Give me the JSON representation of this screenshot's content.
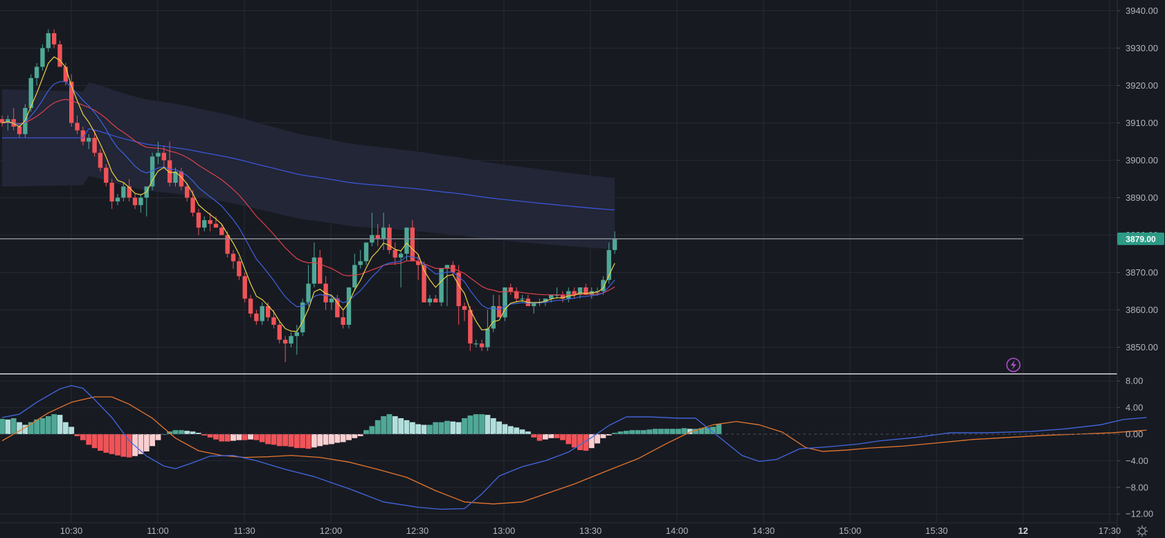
{
  "colors": {
    "background": "#181a22",
    "grid": "#262933",
    "axis_text": "#b2b5be",
    "up": "#4fa896",
    "down": "#ef5358",
    "ema_fast": "#ecd443",
    "ema_mid": "#3e63e0",
    "ema_slow": "#e0414d",
    "vwap": "#3b54d8",
    "band_fill": "#232838",
    "macd_line": "#4169e1",
    "signal_line": "#e5772f",
    "hist_up_strong": "#4fa896",
    "hist_up_weak": "#b2dfdb",
    "hist_down_strong": "#ef5358",
    "hist_down_weak": "#fbcfd1",
    "last_price": "#2d9a85",
    "lightning": "#b04fd0"
  },
  "chart_data": [
    {
      "type": "candlestick",
      "panel": "price",
      "y_ticks": [
        "3940.00",
        "3930.00",
        "3920.00",
        "3910.00",
        "3900.00",
        "3890.00",
        "3880.00",
        "3870.00",
        "3860.00",
        "3850.00"
      ],
      "ylim": [
        3842,
        3942
      ],
      "x_ticks": [
        "10:30",
        "11:00",
        "11:30",
        "12:00",
        "12:30",
        "13:00",
        "13:30",
        "14:00",
        "14:30",
        "15:00",
        "15:30",
        "12",
        "17:30"
      ],
      "bar_interval_minutes": 3,
      "last_price": "3879.00",
      "candles_ohlc": [
        [
          3911,
          3912,
          3909,
          3910
        ],
        [
          3910,
          3912,
          3908,
          3911
        ],
        [
          3911,
          3914,
          3908,
          3909
        ],
        [
          3909,
          3910,
          3906,
          3907
        ],
        [
          3907,
          3915,
          3906,
          3914
        ],
        [
          3914,
          3923,
          3913,
          3922
        ],
        [
          3922,
          3926,
          3920,
          3925
        ],
        [
          3925,
          3931,
          3924,
          3930
        ],
        [
          3930,
          3935,
          3929,
          3934
        ],
        [
          3934,
          3935,
          3930,
          3931
        ],
        [
          3931,
          3932,
          3925,
          3925
        ],
        [
          3925,
          3926,
          3920,
          3921
        ],
        [
          3921,
          3923,
          3909,
          3910
        ],
        [
          3910,
          3912,
          3907,
          3908
        ],
        [
          3908,
          3909,
          3904,
          3905
        ],
        [
          3905,
          3907,
          3903,
          3906
        ],
        [
          3906,
          3908,
          3901,
          3902
        ],
        [
          3902,
          3903,
          3897,
          3898
        ],
        [
          3898,
          3899,
          3893,
          3894
        ],
        [
          3894,
          3895,
          3887,
          3889
        ],
        [
          3889,
          3891,
          3888,
          3890
        ],
        [
          3890,
          3894,
          3889,
          3893
        ],
        [
          3893,
          3895,
          3889,
          3890
        ],
        [
          3890,
          3891,
          3887,
          3888
        ],
        [
          3888,
          3891,
          3886,
          3890
        ],
        [
          3890,
          3893,
          3885,
          3893
        ],
        [
          3893,
          3902,
          3892,
          3901
        ],
        [
          3901,
          3905,
          3899,
          3902
        ],
        [
          3902,
          3904,
          3898,
          3900
        ],
        [
          3900,
          3905,
          3893,
          3894
        ],
        [
          3894,
          3898,
          3893,
          3897
        ],
        [
          3897,
          3898,
          3892,
          3893
        ],
        [
          3893,
          3894,
          3889,
          3890
        ],
        [
          3890,
          3892,
          3885,
          3886
        ],
        [
          3886,
          3887,
          3880,
          3882
        ],
        [
          3882,
          3885,
          3881,
          3884
        ],
        [
          3884,
          3886,
          3881,
          3883
        ],
        [
          3883,
          3885,
          3882,
          3882
        ],
        [
          3882,
          3883,
          3880,
          3880
        ],
        [
          3880,
          3881,
          3874,
          3875
        ],
        [
          3875,
          3876,
          3871,
          3873
        ],
        [
          3873,
          3874,
          3868,
          3869
        ],
        [
          3869,
          3870,
          3862,
          3863
        ],
        [
          3863,
          3864,
          3858,
          3859
        ],
        [
          3859,
          3860,
          3856,
          3857
        ],
        [
          3857,
          3862,
          3856,
          3861
        ],
        [
          3861,
          3862,
          3857,
          3858
        ],
        [
          3858,
          3860,
          3855,
          3856
        ],
        [
          3856,
          3857,
          3851,
          3852
        ],
        [
          3852,
          3853,
          3846,
          3851
        ],
        [
          3851,
          3854,
          3850,
          3853
        ],
        [
          3853,
          3856,
          3848,
          3854
        ],
        [
          3854,
          3863,
          3853,
          3862
        ],
        [
          3862,
          3872,
          3861,
          3867
        ],
        [
          3867,
          3878,
          3866,
          3874
        ],
        [
          3874,
          3876,
          3867,
          3867
        ],
        [
          3867,
          3869,
          3860,
          3862
        ],
        [
          3862,
          3864,
          3860,
          3863
        ],
        [
          3863,
          3864,
          3858,
          3858
        ],
        [
          3858,
          3860,
          3855,
          3856
        ],
        [
          3856,
          3866,
          3855,
          3866
        ],
        [
          3866,
          3875,
          3865,
          3872
        ],
        [
          3872,
          3876,
          3871,
          3873
        ],
        [
          3873,
          3878,
          3872,
          3878
        ],
        [
          3878,
          3886,
          3877,
          3880
        ],
        [
          3880,
          3883,
          3877,
          3879
        ],
        [
          3879,
          3886,
          3876,
          3882
        ],
        [
          3882,
          3883,
          3875,
          3876
        ],
        [
          3876,
          3878,
          3872,
          3874
        ],
        [
          3874,
          3876,
          3866,
          3875
        ],
        [
          3875,
          3882,
          3873,
          3882
        ],
        [
          3882,
          3884,
          3875,
          3873
        ],
        [
          3873,
          3875,
          3868,
          3872
        ],
        [
          3872,
          3873,
          3862,
          3862
        ],
        [
          3862,
          3864,
          3861,
          3863
        ],
        [
          3863,
          3864,
          3862,
          3862
        ],
        [
          3862,
          3868,
          3861,
          3871
        ],
        [
          3871,
          3872,
          3861,
          3872
        ],
        [
          3872,
          3873,
          3869,
          3870
        ],
        [
          3870,
          3872,
          3856,
          3861
        ],
        [
          3861,
          3862,
          3857,
          3860
        ],
        [
          3860,
          3861,
          3849,
          3851
        ],
        [
          3851,
          3852,
          3850,
          3851
        ],
        [
          3851,
          3852,
          3849,
          3850
        ],
        [
          3850,
          3860,
          3849,
          3855
        ],
        [
          3855,
          3864,
          3854,
          3861
        ],
        [
          3861,
          3864,
          3858,
          3858
        ],
        [
          3858,
          3866,
          3857,
          3866
        ],
        [
          3866,
          3867,
          3864,
          3865
        ],
        [
          3865,
          3866,
          3862,
          3863
        ],
        [
          3863,
          3864,
          3862,
          3863
        ],
        [
          3863,
          3864,
          3862,
          3861
        ],
        [
          3861,
          3862,
          3859,
          3862
        ],
        [
          3862,
          3863,
          3861,
          3862
        ],
        [
          3862,
          3863,
          3861,
          3863
        ],
        [
          3863,
          3864,
          3862,
          3864
        ],
        [
          3864,
          3866,
          3863,
          3864
        ],
        [
          3864,
          3865,
          3862,
          3863
        ],
        [
          3863,
          3866,
          3862,
          3865
        ],
        [
          3865,
          3866,
          3863,
          3864
        ],
        [
          3864,
          3866,
          3863,
          3866
        ],
        [
          3866,
          3867,
          3864,
          3864
        ],
        [
          3864,
          3866,
          3863,
          3865
        ],
        [
          3865,
          3866,
          3864,
          3865
        ],
        [
          3865,
          3869,
          3864,
          3868
        ],
        [
          3868,
          3878,
          3867,
          3876
        ],
        [
          3876,
          3881,
          3875,
          3879
        ]
      ]
    },
    {
      "type": "macd",
      "panel": "oscillator",
      "y_ticks": [
        "8.00",
        "4.00",
        "0.00",
        "−4.00",
        "−8.00",
        "−12.00"
      ],
      "ylim": [
        -12.5,
        9
      ],
      "histogram": [
        2.3,
        2.2,
        2.4,
        1.8,
        1.4,
        1.8,
        2.2,
        2.4,
        2.7,
        3.0,
        2.9,
        1.8,
        1.1,
        -0.3,
        -0.9,
        -1.6,
        -2.1,
        -2.5,
        -2.8,
        -3.0,
        -3.2,
        -3.4,
        -3.5,
        -3.3,
        -3.0,
        -2.6,
        -1.8,
        -0.9,
        0.0,
        0.4,
        0.6,
        0.6,
        0.5,
        0.4,
        0.2,
        -0.2,
        -0.5,
        -0.8,
        -1.1,
        -1.1,
        -1.0,
        -0.9,
        -0.9,
        -0.8,
        -0.9,
        -1.2,
        -1.5,
        -1.6,
        -1.8,
        -1.8,
        -1.9,
        -2.1,
        -2.1,
        -2.2,
        -2.0,
        -1.8,
        -1.6,
        -1.5,
        -1.3,
        -1.2,
        -0.9,
        -0.6,
        -0.3,
        0.6,
        1.2,
        2.1,
        2.7,
        3.0,
        2.7,
        2.4,
        2.1,
        1.8,
        1.5,
        1.4,
        1.4,
        1.8,
        1.8,
        2.0,
        1.9,
        1.8,
        2.4,
        2.8,
        3.0,
        3.0,
        2.9,
        2.4,
        1.9,
        1.5,
        1.2,
        1.0,
        0.7,
        0.4,
        -0.5,
        -1.0,
        -0.8,
        -0.6,
        -0.6,
        -0.9,
        -1.5,
        -2.0,
        -2.4,
        -2.5,
        -2.1,
        -1.4,
        -0.6,
        -0.2,
        0.2,
        0.4,
        0.5,
        0.6,
        0.6,
        0.6,
        0.7,
        0.8,
        0.8,
        0.8,
        0.8,
        0.8,
        0.9,
        0.8,
        0.8,
        0.9,
        1.0,
        1.1,
        1.5
      ],
      "macd": [
        [
          0,
          2.5
        ],
        [
          3,
          3.0
        ],
        [
          6,
          4.8
        ],
        [
          10,
          6.8
        ],
        [
          12,
          7.3
        ],
        [
          14,
          6.9
        ],
        [
          16,
          5.2
        ],
        [
          19,
          2.5
        ],
        [
          22,
          -1.0
        ],
        [
          25,
          -3.3
        ],
        [
          28,
          -4.8
        ],
        [
          30,
          -5.2
        ],
        [
          33,
          -4.3
        ],
        [
          36,
          -3.3
        ],
        [
          40,
          -3.2
        ],
        [
          44,
          -4.0
        ],
        [
          49,
          -5.3
        ],
        [
          54,
          -6.4
        ],
        [
          60,
          -8.2
        ],
        [
          66,
          -10.2
        ],
        [
          72,
          -11.0
        ],
        [
          76,
          -11.3
        ],
        [
          80,
          -11.2
        ],
        [
          83,
          -9.0
        ],
        [
          86,
          -6.3
        ],
        [
          90,
          -4.9
        ],
        [
          94,
          -4.0
        ],
        [
          98,
          -2.7
        ],
        [
          102,
          -0.5
        ],
        [
          105,
          1.3
        ],
        [
          108,
          2.6
        ],
        [
          112,
          2.6
        ],
        [
          117,
          2.4
        ],
        [
          120,
          2.4
        ],
        [
          124,
          -0.4
        ],
        [
          128,
          -3.2
        ],
        [
          131,
          -4.1
        ],
        [
          134,
          -3.8
        ],
        [
          138,
          -2.2
        ],
        [
          143,
          -1.9
        ],
        [
          148,
          -1.5
        ],
        [
          152,
          -1.0
        ],
        [
          158,
          -0.5
        ],
        [
          164,
          0.2
        ],
        [
          170,
          0.2
        ],
        [
          178,
          0.4
        ],
        [
          184,
          0.8
        ],
        [
          190,
          1.4
        ],
        [
          194,
          2.2
        ],
        [
          198,
          2.5
        ]
      ],
      "signal": [
        [
          0,
          -1.0
        ],
        [
          4,
          1.0
        ],
        [
          8,
          3.2
        ],
        [
          12,
          4.8
        ],
        [
          16,
          5.6
        ],
        [
          19,
          5.6
        ],
        [
          22,
          4.5
        ],
        [
          26,
          2.4
        ],
        [
          30,
          -0.6
        ],
        [
          34,
          -2.5
        ],
        [
          38,
          -3.2
        ],
        [
          42,
          -3.5
        ],
        [
          46,
          -3.4
        ],
        [
          50,
          -3.2
        ],
        [
          55,
          -3.5
        ],
        [
          60,
          -4.2
        ],
        [
          65,
          -5.3
        ],
        [
          70,
          -6.5
        ],
        [
          75,
          -8.5
        ],
        [
          80,
          -10.2
        ],
        [
          85,
          -10.5
        ],
        [
          90,
          -10.2
        ],
        [
          94,
          -9.0
        ],
        [
          99,
          -7.5
        ],
        [
          105,
          -5.4
        ],
        [
          110,
          -3.7
        ],
        [
          115,
          -1.4
        ],
        [
          119,
          0.3
        ],
        [
          123,
          1.4
        ],
        [
          127,
          1.9
        ],
        [
          131,
          1.4
        ],
        [
          135,
          0.3
        ],
        [
          139,
          -2.0
        ],
        [
          142,
          -2.6
        ],
        [
          146,
          -2.4
        ],
        [
          150,
          -2.1
        ],
        [
          156,
          -1.8
        ],
        [
          162,
          -1.3
        ],
        [
          168,
          -0.8
        ],
        [
          174,
          -0.5
        ],
        [
          180,
          -0.2
        ],
        [
          186,
          0.0
        ],
        [
          192,
          0.2
        ],
        [
          198,
          0.6
        ]
      ]
    }
  ]
}
